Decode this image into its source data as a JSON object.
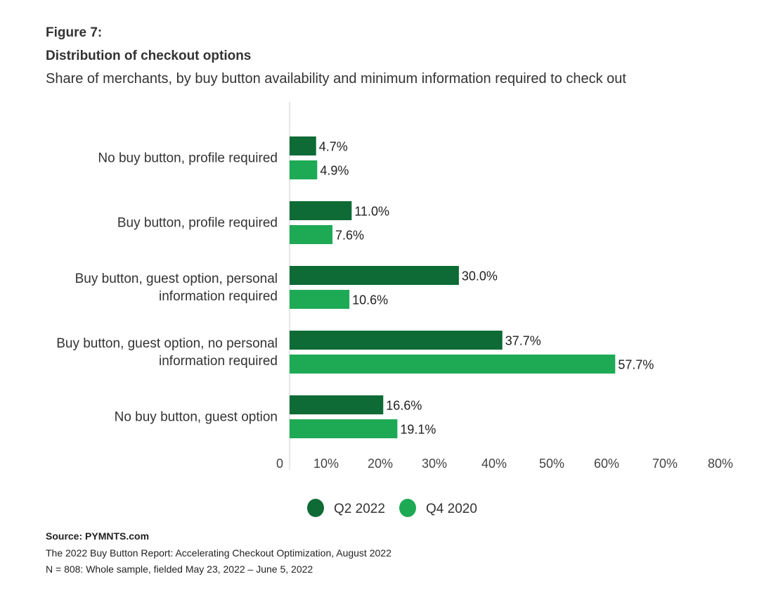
{
  "figure_label": "Figure 7:",
  "chart_data": {
    "type": "bar",
    "orientation": "horizontal",
    "title": "Distribution of checkout options",
    "subtitle": "Share of merchants, by buy button availability and minimum information required to check out",
    "categories": [
      [
        "No buy button, profile required"
      ],
      [
        "Buy button, profile required"
      ],
      [
        "Buy button, guest option, personal",
        "information required"
      ],
      [
        "Buy button, guest option, no personal",
        "information required"
      ],
      [
        "No buy button, guest option"
      ]
    ],
    "series": [
      {
        "name": "Q2 2022",
        "color": "#0e6b35",
        "values": [
          4.7,
          11.0,
          30.0,
          37.7,
          16.6
        ],
        "labels": [
          "4.7%",
          "11.0%",
          "30.0%",
          "37.7%",
          "16.6%"
        ]
      },
      {
        "name": "Q4 2020",
        "color": "#1eaa55",
        "values": [
          4.9,
          7.6,
          10.6,
          57.7,
          19.1
        ],
        "labels": [
          "4.9%",
          "7.6%",
          "10.6%",
          "57.7%",
          "19.1%"
        ]
      }
    ],
    "xlim": [
      0,
      80
    ],
    "xticks": [
      "0",
      "10%",
      "20%",
      "30%",
      "40%",
      "50%",
      "60%",
      "70%",
      "80%"
    ],
    "legend": "bottom-center",
    "grid": false
  },
  "source": {
    "line1": "Source: PYMNTS.com",
    "line2": "The 2022 Buy Button Report: Accelerating Checkout Optimization, August 2022",
    "line3": "N = 808: Whole sample, fielded May 23, 2022 – June 5, 2022"
  }
}
